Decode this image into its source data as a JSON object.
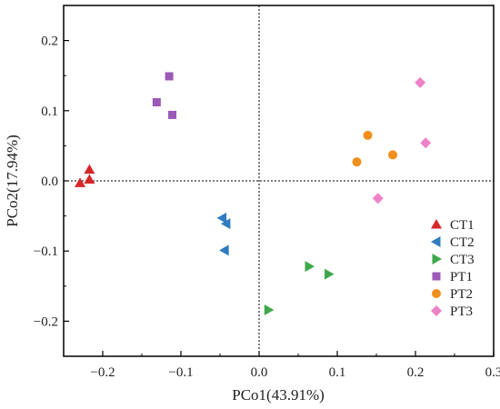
{
  "chart_data": {
    "type": "scatter",
    "xlabel": "PCo1(43.91%)",
    "ylabel": "PCo2(17.94%)",
    "xlim": [
      -0.25,
      0.3
    ],
    "ylim": [
      -0.25,
      0.25
    ],
    "x_ticks": [
      -0.2,
      -0.1,
      0.0,
      0.1,
      0.2,
      0.3
    ],
    "x_tick_labels": [
      "−0.2",
      "−0.1",
      "0.0",
      "0.1",
      "0.2",
      "0.3"
    ],
    "y_ticks": [
      -0.2,
      -0.1,
      0.0,
      0.1,
      0.2
    ],
    "y_tick_labels": [
      "−0.2",
      "−0.1",
      "0.0",
      "0.1",
      "0.2"
    ],
    "reference_lines": {
      "x": 0,
      "y": 0,
      "style": "dotted"
    },
    "grid": false,
    "legend_position": "lower-right",
    "series": [
      {
        "name": "CT1",
        "color": "#d62728",
        "marker": "triangle-up",
        "points": [
          [
            -0.217,
            0.016
          ],
          [
            -0.229,
            -0.003
          ],
          [
            -0.217,
            0.002
          ]
        ]
      },
      {
        "name": "CT2",
        "color": "#2f7bbf",
        "marker": "triangle-left",
        "points": [
          [
            -0.047,
            -0.053
          ],
          [
            -0.042,
            -0.061
          ],
          [
            -0.044,
            -0.099
          ]
        ]
      },
      {
        "name": "CT3",
        "color": "#3ea84a",
        "marker": "triangle-right",
        "points": [
          [
            0.064,
            -0.122
          ],
          [
            0.089,
            -0.133
          ],
          [
            0.012,
            -0.184
          ]
        ]
      },
      {
        "name": "PT1",
        "color": "#9b59b6",
        "marker": "square",
        "points": [
          [
            -0.115,
            0.149
          ],
          [
            -0.131,
            0.112
          ],
          [
            -0.111,
            0.094
          ]
        ]
      },
      {
        "name": "PT2",
        "color": "#f28e1c",
        "marker": "circle",
        "points": [
          [
            0.139,
            0.065
          ],
          [
            0.125,
            0.027
          ],
          [
            0.171,
            0.037
          ]
        ]
      },
      {
        "name": "PT3",
        "color": "#ee82c8",
        "marker": "diamond",
        "points": [
          [
            0.206,
            0.14
          ],
          [
            0.213,
            0.054
          ],
          [
            0.152,
            -0.025
          ]
        ]
      }
    ]
  }
}
